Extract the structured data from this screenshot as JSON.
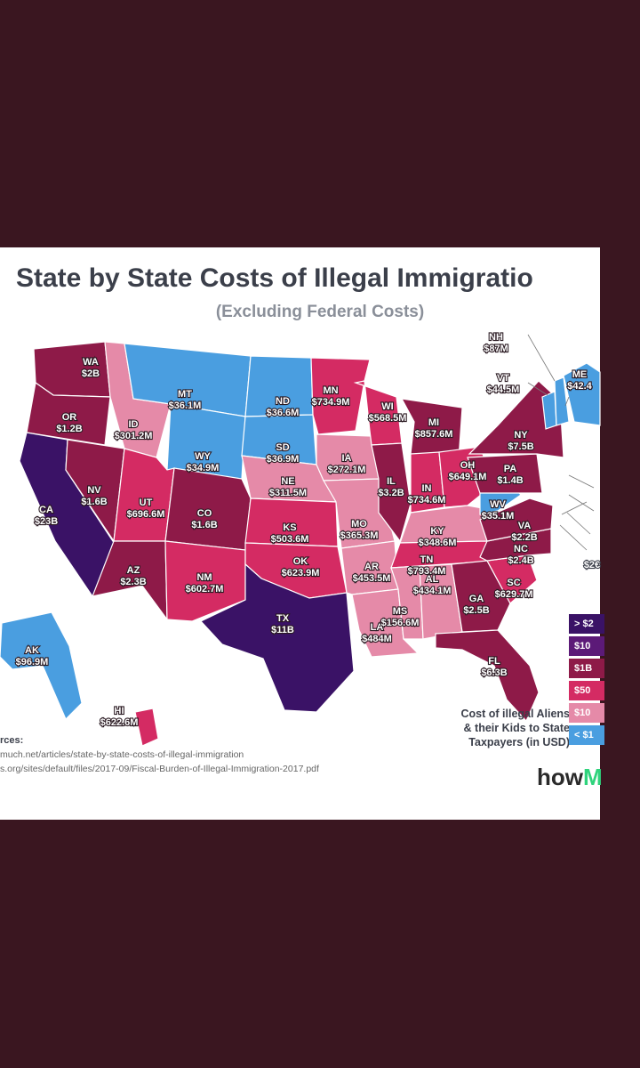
{
  "title": "State by State Costs of Illegal Immigratio",
  "subtitle": "(Excluding Federal Costs)",
  "colors": {
    "over2b": "#3a1266",
    "b1to2": "#5c1a78",
    "m500to1b": "#8e1a48",
    "m100to500": "#d42b63",
    "m10to100": "#e58aa8",
    "under10": "#4a9ee0",
    "page_bg": "#3a1620"
  },
  "states": [
    {
      "code": "WA",
      "value": "$2B",
      "color": "m500to1b"
    },
    {
      "code": "OR",
      "value": "$1.2B",
      "color": "m500to1b"
    },
    {
      "code": "CA",
      "value": "$23B",
      "color": "over2b"
    },
    {
      "code": "NV",
      "value": "$1.6B",
      "color": "m500to1b"
    },
    {
      "code": "ID",
      "value": "$301.2M",
      "color": "m10to100"
    },
    {
      "code": "MT",
      "value": "$36.1M",
      "color": "under10"
    },
    {
      "code": "WY",
      "value": "$34.9M",
      "color": "under10"
    },
    {
      "code": "UT",
      "value": "$696.6M",
      "color": "m100to500"
    },
    {
      "code": "AZ",
      "value": "$2.3B",
      "color": "m500to1b"
    },
    {
      "code": "CO",
      "value": "$1.6B",
      "color": "m500to1b"
    },
    {
      "code": "NM",
      "value": "$602.7M",
      "color": "m100to500"
    },
    {
      "code": "ND",
      "value": "$36.6M",
      "color": "under10"
    },
    {
      "code": "SD",
      "value": "$36.9M",
      "color": "under10"
    },
    {
      "code": "NE",
      "value": "$311.5M",
      "color": "m10to100"
    },
    {
      "code": "KS",
      "value": "$503.6M",
      "color": "m100to500"
    },
    {
      "code": "OK",
      "value": "$623.9M",
      "color": "m100to500"
    },
    {
      "code": "TX",
      "value": "$11B",
      "color": "over2b"
    },
    {
      "code": "MN",
      "value": "$734.9M",
      "color": "m100to500"
    },
    {
      "code": "IA",
      "value": "$272.1M",
      "color": "m10to100"
    },
    {
      "code": "MO",
      "value": "$365.3M",
      "color": "m10to100"
    },
    {
      "code": "AR",
      "value": "$453.5M",
      "color": "m10to100"
    },
    {
      "code": "LA",
      "value": "$484M",
      "color": "m10to100"
    },
    {
      "code": "WI",
      "value": "$568.5M",
      "color": "m100to500"
    },
    {
      "code": "IL",
      "value": "$3.2B",
      "color": "m500to1b"
    },
    {
      "code": "MI",
      "value": "$857.6M",
      "color": "m500to1b"
    },
    {
      "code": "IN",
      "value": "$734.6M",
      "color": "m100to500"
    },
    {
      "code": "OH",
      "value": "$649.1M",
      "color": "m100to500"
    },
    {
      "code": "KY",
      "value": "$348.6M",
      "color": "m10to100"
    },
    {
      "code": "TN",
      "value": "$793.4M",
      "color": "m100to500"
    },
    {
      "code": "MS",
      "value": "$156.6M",
      "color": "m10to100"
    },
    {
      "code": "AL",
      "value": "$434.1M",
      "color": "m10to100"
    },
    {
      "code": "GA",
      "value": "$2.5B",
      "color": "m500to1b"
    },
    {
      "code": "FL",
      "value": "$6.3B",
      "color": "m500to1b"
    },
    {
      "code": "SC",
      "value": "$629.7M",
      "color": "m100to500"
    },
    {
      "code": "NC",
      "value": "$2.4B",
      "color": "m500to1b"
    },
    {
      "code": "VA",
      "value": "$2.2B",
      "color": "m500to1b"
    },
    {
      "code": "WV",
      "value": "$35.1M",
      "color": "under10"
    },
    {
      "code": "PA",
      "value": "$1.4B",
      "color": "m500to1b"
    },
    {
      "code": "NY",
      "value": "$7.5B",
      "color": "m500to1b"
    },
    {
      "code": "VT",
      "value": "$44.5M",
      "color": "under10"
    },
    {
      "code": "NH",
      "value": "$87M",
      "color": "under10"
    },
    {
      "code": "ME",
      "value": "$42.4",
      "color": "under10"
    },
    {
      "code": "AK",
      "value": "$96.9M",
      "color": "under10"
    },
    {
      "code": "HI",
      "value": "$622.6M",
      "color": "m100to500"
    }
  ],
  "offmap_label": "$2€",
  "legend": {
    "caption": [
      "Cost of illegal Aliens",
      "& their Kids to State",
      "Taxpayers (in USD)"
    ],
    "items": [
      {
        "label": "> $2",
        "color": "over2b"
      },
      {
        "label": "$10",
        "color": "b1to2"
      },
      {
        "label": "$1B",
        "color": "m500to1b"
      },
      {
        "label": "$50",
        "color": "m100to500"
      },
      {
        "label": "$10",
        "color": "m10to100"
      },
      {
        "label": "< $1",
        "color": "under10"
      }
    ]
  },
  "sources": {
    "heading": "rces:",
    "line1": "much.net/articles/state-by-state-costs-of-illegal-immigration",
    "line2": "s.org/sites/default/files/2017-09/Fiscal-Burden-of-Illegal-Immigration-2017.pdf"
  },
  "brand": {
    "main": "how",
    "accent": "M"
  }
}
